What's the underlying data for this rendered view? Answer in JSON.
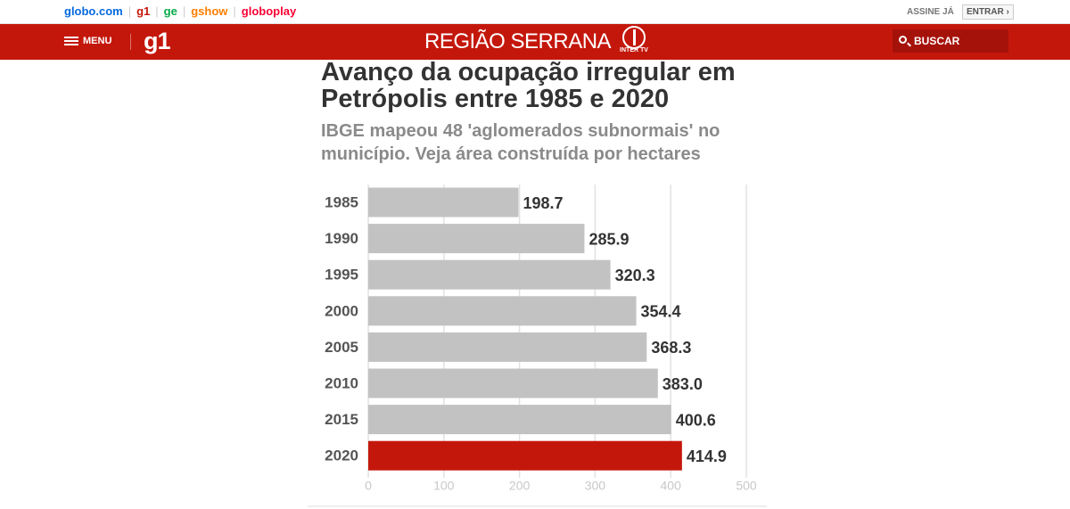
{
  "top_bar": {
    "links": [
      "globo.com",
      "g1",
      "ge",
      "gshow",
      "globoplay"
    ],
    "subscribe": "ASSINE JÁ",
    "login": "ENTRAR"
  },
  "header": {
    "menu": "MENU",
    "logo": "g1",
    "region": "REGIÃO SERRANA",
    "brand": "INTER TV",
    "search": "BUSCAR"
  },
  "chart_data": {
    "type": "bar",
    "orientation": "horizontal",
    "title": "Avanço da ocupação irregular em Petrópolis entre 1985 e 2020",
    "subtitle": "IBGE mapeou 48 'aglomerados subnormais' no município. Veja área construída por hectares",
    "categories": [
      "1985",
      "1990",
      "1995",
      "2000",
      "2005",
      "2010",
      "2015",
      "2020"
    ],
    "values": [
      198.7,
      285.9,
      320.3,
      354.4,
      368.3,
      383.0,
      400.6,
      414.9
    ],
    "value_labels": [
      "198.7",
      "285.9",
      "320.3",
      "354.4",
      "368.3",
      "383.0",
      "400.6",
      "414.9"
    ],
    "colors": [
      "#c2c2c2",
      "#c2c2c2",
      "#c2c2c2",
      "#c2c2c2",
      "#c2c2c2",
      "#c2c2c2",
      "#c2c2c2",
      "#c4170c"
    ],
    "xlim": [
      0,
      500
    ],
    "xticks": [
      0,
      100,
      200,
      300,
      400,
      500
    ],
    "grid": true
  }
}
